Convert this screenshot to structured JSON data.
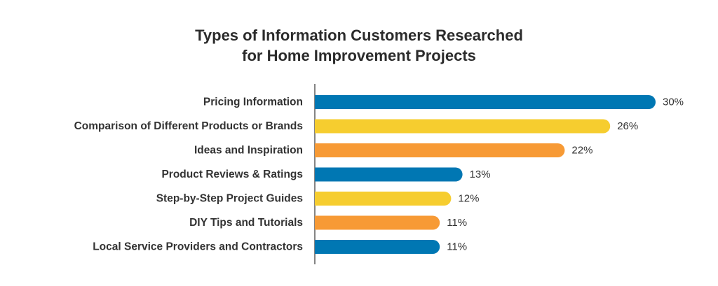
{
  "chart_data": {
    "type": "bar",
    "orientation": "horizontal",
    "title_lines": [
      "Types of Information Customers Researched",
      "for Home Improvement Projects"
    ],
    "categories": [
      "Pricing Information",
      "Comparison of Different Products or Brands",
      "Ideas and Inspiration",
      "Product Reviews & Ratings",
      "Step-by-Step Project Guides",
      "DIY Tips and Tutorials",
      "Local Service Providers and Contractors"
    ],
    "values": [
      30,
      26,
      22,
      13,
      12,
      11,
      11
    ],
    "value_labels": [
      "30%",
      "26%",
      "22%",
      "13%",
      "12%",
      "11%",
      "11%"
    ],
    "bar_colors": [
      "#0077b3",
      "#f6cd2f",
      "#f79a35",
      "#0077b3",
      "#f6cd2f",
      "#f79a35",
      "#0077b3"
    ],
    "xlim": [
      0,
      30
    ],
    "grid": false,
    "legend": "none"
  },
  "colors": {
    "blue": "#0077b3",
    "yellow": "#f6cd2f",
    "orange": "#f79a35",
    "text": "#333333",
    "axis": "#333333"
  }
}
